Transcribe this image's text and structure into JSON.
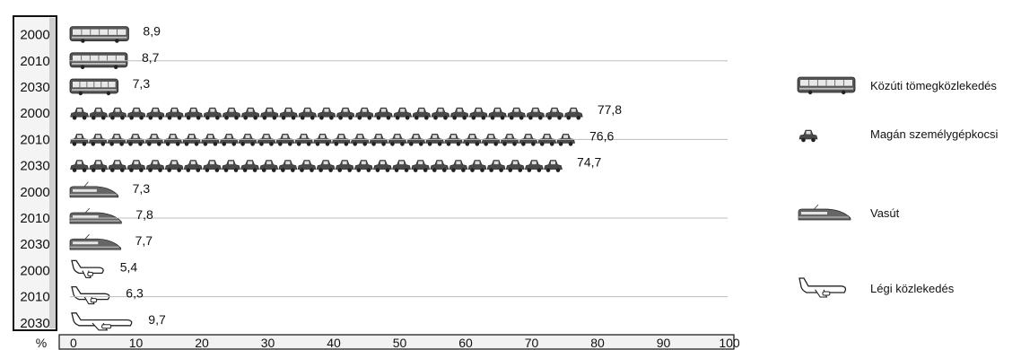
{
  "chart_data": {
    "type": "bar",
    "unit_label": "%",
    "xlim": [
      0,
      100
    ],
    "x_ticks": [
      0,
      10,
      20,
      30,
      40,
      50,
      60,
      70,
      80,
      90,
      100
    ],
    "years": [
      "2000",
      "2010",
      "2030"
    ],
    "series": [
      {
        "name": "Közúti tömegközlekedés",
        "icon": "bus-icon",
        "values": [
          8.9,
          8.7,
          7.3
        ],
        "labels": [
          "8,9",
          "8,7",
          "7,3"
        ]
      },
      {
        "name": "Magán személygépkocsi",
        "icon": "car-icon",
        "values": [
          77.8,
          76.6,
          74.7
        ],
        "labels": [
          "77,8",
          "76,6",
          "74,7"
        ]
      },
      {
        "name": "Vasút",
        "icon": "train-icon",
        "values": [
          7.3,
          7.8,
          7.7
        ],
        "labels": [
          "7,3",
          "7,8",
          "7,7"
        ]
      },
      {
        "name": "Légi közlekedés",
        "icon": "plane-icon",
        "values": [
          5.4,
          6.3,
          9.7
        ],
        "labels": [
          "5,4",
          "6,3",
          "9,7"
        ]
      }
    ],
    "grid": "horizontal at 2010 rows",
    "legend_position": "right"
  }
}
